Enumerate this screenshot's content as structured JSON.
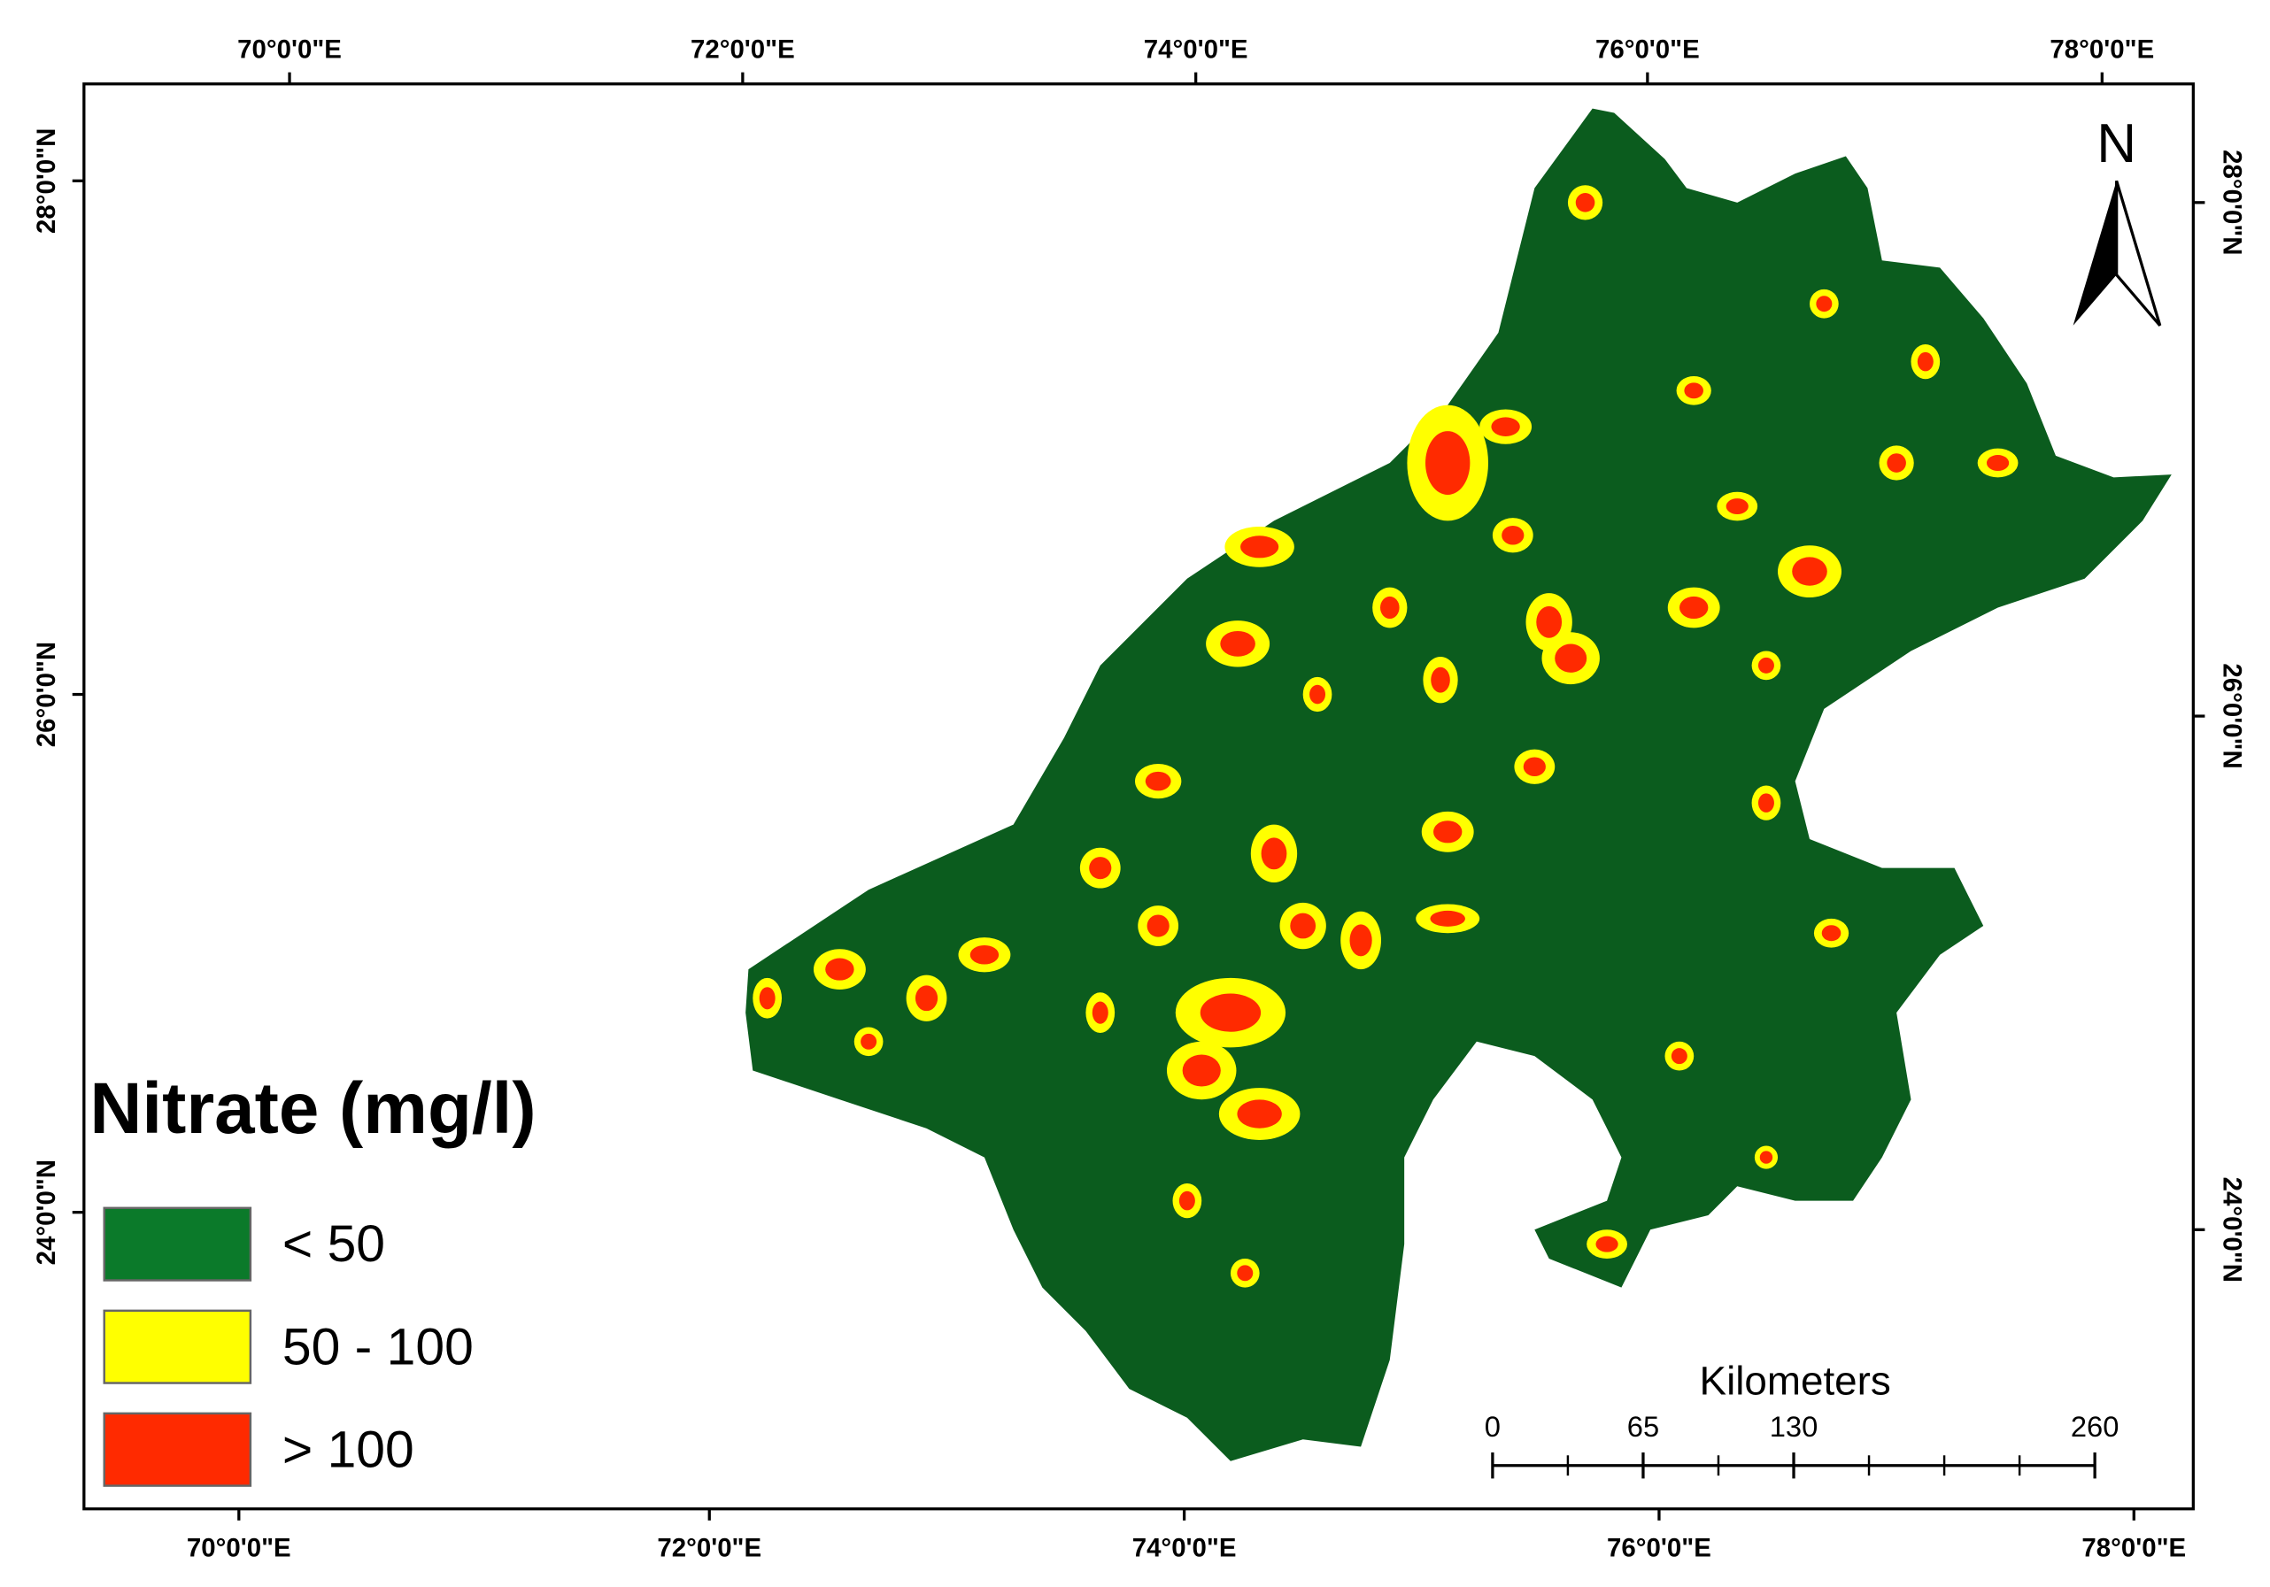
{
  "map": {
    "legend": {
      "title": "Nitrate (mg/l)",
      "items": [
        {
          "label": "< 50",
          "color": "#0b7a2a"
        },
        {
          "label": "50 - 100",
          "color": "#ffff00"
        },
        {
          "label": "> 100",
          "color": "#ff2a00"
        }
      ]
    },
    "top_labels": [
      "70°0'0\"E",
      "72°0'0\"E",
      "74°0'0\"E",
      "76°0'0\"E",
      "78°0'0\"E"
    ],
    "bottom_labels": [
      "70°0'0\"E",
      "72°0'0\"E",
      "74°0'0\"E",
      "76°0'0\"E",
      "78°0'0\"E"
    ],
    "left_labels": [
      "28°0'0\"N",
      "26°0'0\"N",
      "24°0'0\"N"
    ],
    "right_labels": [
      "28°0'0\"N",
      "26°0'0\"N",
      "24°0'0\"N"
    ],
    "north": "N",
    "scale_bar": {
      "unit": "Kilometers",
      "ticks": [
        0,
        65,
        130,
        260
      ]
    }
  }
}
